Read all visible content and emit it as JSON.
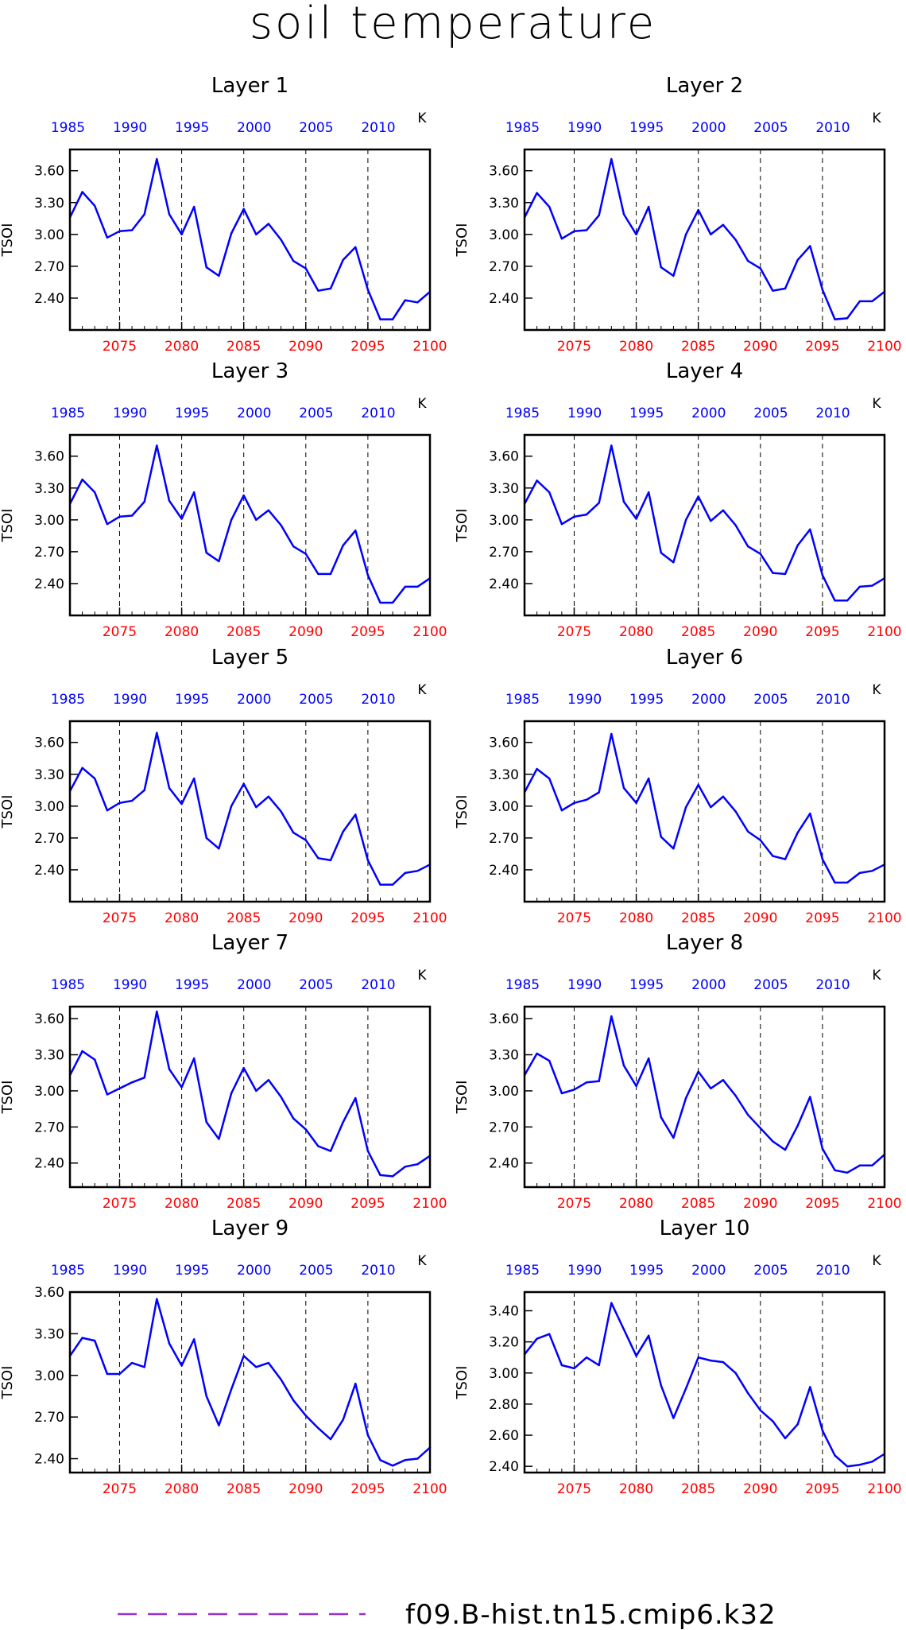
{
  "figure_title": "soil temperature",
  "legend": {
    "label": "f09.B-hist.tn15.cmip6.k32",
    "color": "#9932CC"
  },
  "colors": {
    "line": "#0000FF",
    "bottom_ticks": "#FF0000",
    "top_ticks": "#0000FF",
    "frame": "#000000"
  },
  "chart_data": [
    {
      "type": "line",
      "title": "Layer 1",
      "ylabel": "TSOI",
      "unit": "K",
      "x": [
        2071,
        2072,
        2073,
        2074,
        2075,
        2076,
        2077,
        2078,
        2079,
        2080,
        2081,
        2082,
        2083,
        2084,
        2085,
        2086,
        2087,
        2088,
        2089,
        2090,
        2091,
        2092,
        2093,
        2094,
        2095,
        2096,
        2097,
        2098,
        2099,
        2100
      ],
      "values": [
        3.16,
        3.4,
        3.27,
        2.97,
        3.03,
        3.04,
        3.19,
        3.71,
        3.19,
        3.0,
        3.26,
        2.69,
        2.61,
        3.01,
        3.24,
        3.0,
        3.1,
        2.95,
        2.75,
        2.68,
        2.47,
        2.49,
        2.76,
        2.88,
        2.48,
        2.2,
        2.2,
        2.38,
        2.36,
        2.46
      ],
      "xlim": [
        2071,
        2100
      ],
      "ylim": [
        2.1,
        3.8
      ],
      "yticks": [
        2.4,
        2.7,
        3.0,
        3.3,
        3.6
      ],
      "ytick_labels": [
        "2.40",
        "2.70",
        "3.00",
        "3.30",
        "3.60"
      ],
      "xticks_bottom": [
        2075,
        2080,
        2085,
        2090,
        2095,
        2100
      ],
      "xticks_top": [
        1985,
        1990,
        1995,
        2000,
        2005,
        2010
      ],
      "grid_x": [
        2075,
        2080,
        2085,
        2090,
        2095
      ]
    },
    {
      "type": "line",
      "title": "Layer 2",
      "ylabel": "TSOI",
      "unit": "K",
      "x": [
        2071,
        2072,
        2073,
        2074,
        2075,
        2076,
        2077,
        2078,
        2079,
        2080,
        2081,
        2082,
        2083,
        2084,
        2085,
        2086,
        2087,
        2088,
        2089,
        2090,
        2091,
        2092,
        2093,
        2094,
        2095,
        2096,
        2097,
        2098,
        2099,
        2100
      ],
      "values": [
        3.16,
        3.39,
        3.26,
        2.96,
        3.03,
        3.04,
        3.18,
        3.71,
        3.19,
        3.0,
        3.26,
        2.69,
        2.61,
        3.0,
        3.23,
        3.0,
        3.09,
        2.95,
        2.75,
        2.68,
        2.47,
        2.49,
        2.76,
        2.89,
        2.48,
        2.2,
        2.21,
        2.37,
        2.37,
        2.46
      ],
      "xlim": [
        2071,
        2100
      ],
      "ylim": [
        2.1,
        3.8
      ],
      "yticks": [
        2.4,
        2.7,
        3.0,
        3.3,
        3.6
      ],
      "ytick_labels": [
        "2.40",
        "2.70",
        "3.00",
        "3.30",
        "3.60"
      ],
      "xticks_bottom": [
        2075,
        2080,
        2085,
        2090,
        2095,
        2100
      ],
      "xticks_top": [
        1985,
        1990,
        1995,
        2000,
        2005,
        2010
      ],
      "grid_x": [
        2075,
        2080,
        2085,
        2090,
        2095
      ]
    },
    {
      "type": "line",
      "title": "Layer 3",
      "ylabel": "TSOI",
      "unit": "K",
      "x": [
        2071,
        2072,
        2073,
        2074,
        2075,
        2076,
        2077,
        2078,
        2079,
        2080,
        2081,
        2082,
        2083,
        2084,
        2085,
        2086,
        2087,
        2088,
        2089,
        2090,
        2091,
        2092,
        2093,
        2094,
        2095,
        2096,
        2097,
        2098,
        2099,
        2100
      ],
      "values": [
        3.15,
        3.38,
        3.26,
        2.96,
        3.03,
        3.04,
        3.17,
        3.7,
        3.18,
        3.01,
        3.26,
        2.69,
        2.61,
        3.0,
        3.23,
        3.0,
        3.09,
        2.95,
        2.75,
        2.68,
        2.49,
        2.49,
        2.76,
        2.9,
        2.48,
        2.22,
        2.22,
        2.37,
        2.37,
        2.45
      ],
      "xlim": [
        2071,
        2100
      ],
      "ylim": [
        2.1,
        3.8
      ],
      "yticks": [
        2.4,
        2.7,
        3.0,
        3.3,
        3.6
      ],
      "ytick_labels": [
        "2.40",
        "2.70",
        "3.00",
        "3.30",
        "3.60"
      ],
      "xticks_bottom": [
        2075,
        2080,
        2085,
        2090,
        2095,
        2100
      ],
      "xticks_top": [
        1985,
        1990,
        1995,
        2000,
        2005,
        2010
      ],
      "grid_x": [
        2075,
        2080,
        2085,
        2090,
        2095
      ]
    },
    {
      "type": "line",
      "title": "Layer 4",
      "ylabel": "TSOI",
      "unit": "K",
      "x": [
        2071,
        2072,
        2073,
        2074,
        2075,
        2076,
        2077,
        2078,
        2079,
        2080,
        2081,
        2082,
        2083,
        2084,
        2085,
        2086,
        2087,
        2088,
        2089,
        2090,
        2091,
        2092,
        2093,
        2094,
        2095,
        2096,
        2097,
        2098,
        2099,
        2100
      ],
      "values": [
        3.15,
        3.37,
        3.26,
        2.96,
        3.03,
        3.05,
        3.16,
        3.7,
        3.17,
        3.01,
        3.26,
        2.69,
        2.6,
        3.0,
        3.22,
        2.99,
        3.09,
        2.95,
        2.75,
        2.68,
        2.5,
        2.49,
        2.76,
        2.91,
        2.48,
        2.24,
        2.24,
        2.37,
        2.38,
        2.45
      ],
      "xlim": [
        2071,
        2100
      ],
      "ylim": [
        2.1,
        3.8
      ],
      "yticks": [
        2.4,
        2.7,
        3.0,
        3.3,
        3.6
      ],
      "ytick_labels": [
        "2.40",
        "2.70",
        "3.00",
        "3.30",
        "3.60"
      ],
      "xticks_bottom": [
        2075,
        2080,
        2085,
        2090,
        2095,
        2100
      ],
      "xticks_top": [
        1985,
        1990,
        1995,
        2000,
        2005,
        2010
      ],
      "grid_x": [
        2075,
        2080,
        2085,
        2090,
        2095
      ]
    },
    {
      "type": "line",
      "title": "Layer 5",
      "ylabel": "TSOI",
      "unit": "K",
      "x": [
        2071,
        2072,
        2073,
        2074,
        2075,
        2076,
        2077,
        2078,
        2079,
        2080,
        2081,
        2082,
        2083,
        2084,
        2085,
        2086,
        2087,
        2088,
        2089,
        2090,
        2091,
        2092,
        2093,
        2094,
        2095,
        2096,
        2097,
        2098,
        2099,
        2100
      ],
      "values": [
        3.14,
        3.36,
        3.26,
        2.96,
        3.03,
        3.05,
        3.15,
        3.69,
        3.17,
        3.02,
        3.26,
        2.7,
        2.6,
        3.0,
        3.21,
        2.99,
        3.09,
        2.95,
        2.75,
        2.68,
        2.51,
        2.49,
        2.76,
        2.92,
        2.49,
        2.26,
        2.26,
        2.37,
        2.39,
        2.45
      ],
      "xlim": [
        2071,
        2100
      ],
      "ylim": [
        2.1,
        3.8
      ],
      "yticks": [
        2.4,
        2.7,
        3.0,
        3.3,
        3.6
      ],
      "ytick_labels": [
        "2.40",
        "2.70",
        "3.00",
        "3.30",
        "3.60"
      ],
      "xticks_bottom": [
        2075,
        2080,
        2085,
        2090,
        2095,
        2100
      ],
      "xticks_top": [
        1985,
        1990,
        1995,
        2000,
        2005,
        2010
      ],
      "grid_x": [
        2075,
        2080,
        2085,
        2090,
        2095
      ]
    },
    {
      "type": "line",
      "title": "Layer 6",
      "ylabel": "TSOI",
      "unit": "K",
      "x": [
        2071,
        2072,
        2073,
        2074,
        2075,
        2076,
        2077,
        2078,
        2079,
        2080,
        2081,
        2082,
        2083,
        2084,
        2085,
        2086,
        2087,
        2088,
        2089,
        2090,
        2091,
        2092,
        2093,
        2094,
        2095,
        2096,
        2097,
        2098,
        2099,
        2100
      ],
      "values": [
        3.13,
        3.35,
        3.26,
        2.96,
        3.03,
        3.06,
        3.13,
        3.68,
        3.17,
        3.03,
        3.26,
        2.71,
        2.6,
        2.99,
        3.2,
        2.99,
        3.09,
        2.95,
        2.76,
        2.68,
        2.53,
        2.5,
        2.75,
        2.93,
        2.5,
        2.28,
        2.28,
        2.37,
        2.39,
        2.45
      ],
      "xlim": [
        2071,
        2100
      ],
      "ylim": [
        2.1,
        3.8
      ],
      "yticks": [
        2.4,
        2.7,
        3.0,
        3.3,
        3.6
      ],
      "ytick_labels": [
        "2.40",
        "2.70",
        "3.00",
        "3.30",
        "3.60"
      ],
      "xticks_bottom": [
        2075,
        2080,
        2085,
        2090,
        2095,
        2100
      ],
      "xticks_top": [
        1985,
        1990,
        1995,
        2000,
        2005,
        2010
      ],
      "grid_x": [
        2075,
        2080,
        2085,
        2090,
        2095
      ]
    },
    {
      "type": "line",
      "title": "Layer 7",
      "ylabel": "TSOI",
      "unit": "K",
      "x": [
        2071,
        2072,
        2073,
        2074,
        2075,
        2076,
        2077,
        2078,
        2079,
        2080,
        2081,
        2082,
        2083,
        2084,
        2085,
        2086,
        2087,
        2088,
        2089,
        2090,
        2091,
        2092,
        2093,
        2094,
        2095,
        2096,
        2097,
        2098,
        2099,
        2100
      ],
      "values": [
        3.13,
        3.33,
        3.26,
        2.97,
        3.02,
        3.07,
        3.11,
        3.66,
        3.18,
        3.03,
        3.27,
        2.74,
        2.6,
        2.98,
        3.19,
        3.0,
        3.09,
        2.95,
        2.77,
        2.68,
        2.54,
        2.5,
        2.74,
        2.94,
        2.5,
        2.3,
        2.29,
        2.37,
        2.39,
        2.46
      ],
      "xlim": [
        2071,
        2100
      ],
      "ylim": [
        2.2,
        3.7
      ],
      "yticks": [
        2.4,
        2.7,
        3.0,
        3.3,
        3.6
      ],
      "ytick_labels": [
        "2.40",
        "2.70",
        "3.00",
        "3.30",
        "3.60"
      ],
      "xticks_bottom": [
        2075,
        2080,
        2085,
        2090,
        2095,
        2100
      ],
      "xticks_top": [
        1985,
        1990,
        1995,
        2000,
        2005,
        2010
      ],
      "grid_x": [
        2075,
        2080,
        2085,
        2090,
        2095
      ]
    },
    {
      "type": "line",
      "title": "Layer 8",
      "ylabel": "TSOI",
      "unit": "K",
      "x": [
        2071,
        2072,
        2073,
        2074,
        2075,
        2076,
        2077,
        2078,
        2079,
        2080,
        2081,
        2082,
        2083,
        2084,
        2085,
        2086,
        2087,
        2088,
        2089,
        2090,
        2091,
        2092,
        2093,
        2094,
        2095,
        2096,
        2097,
        2098,
        2099,
        2100
      ],
      "values": [
        3.13,
        3.31,
        3.25,
        2.98,
        3.01,
        3.07,
        3.08,
        3.62,
        3.21,
        3.04,
        3.27,
        2.78,
        2.61,
        2.94,
        3.16,
        3.02,
        3.09,
        2.96,
        2.8,
        2.69,
        2.58,
        2.51,
        2.71,
        2.95,
        2.52,
        2.34,
        2.32,
        2.38,
        2.38,
        2.47
      ],
      "xlim": [
        2071,
        2100
      ],
      "ylim": [
        2.2,
        3.7
      ],
      "yticks": [
        2.4,
        2.7,
        3.0,
        3.3,
        3.6
      ],
      "ytick_labels": [
        "2.40",
        "2.70",
        "3.00",
        "3.30",
        "3.60"
      ],
      "xticks_bottom": [
        2075,
        2080,
        2085,
        2090,
        2095,
        2100
      ],
      "xticks_top": [
        1985,
        1990,
        1995,
        2000,
        2005,
        2010
      ],
      "grid_x": [
        2075,
        2080,
        2085,
        2090,
        2095
      ]
    },
    {
      "type": "line",
      "title": "Layer 9",
      "ylabel": "TSOI",
      "unit": "K",
      "x": [
        2071,
        2072,
        2073,
        2074,
        2075,
        2076,
        2077,
        2078,
        2079,
        2080,
        2081,
        2082,
        2083,
        2084,
        2085,
        2086,
        2087,
        2088,
        2089,
        2090,
        2091,
        2092,
        2093,
        2094,
        2095,
        2096,
        2097,
        2098,
        2099,
        2100
      ],
      "values": [
        3.14,
        3.27,
        3.25,
        3.01,
        3.01,
        3.09,
        3.06,
        3.55,
        3.23,
        3.07,
        3.26,
        2.85,
        2.64,
        2.9,
        3.14,
        3.06,
        3.09,
        2.97,
        2.82,
        2.71,
        2.62,
        2.54,
        2.68,
        2.94,
        2.57,
        2.39,
        2.35,
        2.39,
        2.4,
        2.48
      ],
      "xlim": [
        2071,
        2100
      ],
      "ylim": [
        2.3,
        3.6
      ],
      "yticks": [
        2.4,
        2.7,
        3.0,
        3.3,
        3.6
      ],
      "ytick_labels": [
        "2.40",
        "2.70",
        "3.00",
        "3.30",
        "3.60"
      ],
      "xticks_bottom": [
        2075,
        2080,
        2085,
        2090,
        2095,
        2100
      ],
      "xticks_top": [
        1985,
        1990,
        1995,
        2000,
        2005,
        2010
      ],
      "grid_x": [
        2075,
        2080,
        2085,
        2090,
        2095
      ]
    },
    {
      "type": "line",
      "title": "Layer 10",
      "ylabel": "TSOI",
      "unit": "K",
      "x": [
        2071,
        2072,
        2073,
        2074,
        2075,
        2076,
        2077,
        2078,
        2079,
        2080,
        2081,
        2082,
        2083,
        2084,
        2085,
        2086,
        2087,
        2088,
        2089,
        2090,
        2091,
        2092,
        2093,
        2094,
        2095,
        2096,
        2097,
        2098,
        2099,
        2100
      ],
      "values": [
        3.12,
        3.22,
        3.25,
        3.05,
        3.03,
        3.1,
        3.05,
        3.45,
        3.28,
        3.11,
        3.24,
        2.92,
        2.71,
        2.9,
        3.1,
        3.08,
        3.07,
        3.0,
        2.87,
        2.76,
        2.69,
        2.58,
        2.67,
        2.91,
        2.63,
        2.47,
        2.4,
        2.41,
        2.43,
        2.48
      ],
      "xlim": [
        2071,
        2100
      ],
      "ylim": [
        2.36,
        3.52
      ],
      "yticks": [
        2.4,
        2.6,
        2.8,
        3.0,
        3.2,
        3.4
      ],
      "ytick_labels": [
        "2.40",
        "2.60",
        "2.80",
        "3.00",
        "3.20",
        "3.40"
      ],
      "xticks_bottom": [
        2075,
        2080,
        2085,
        2090,
        2095,
        2100
      ],
      "xticks_top": [
        1985,
        1990,
        1995,
        2000,
        2005,
        2010
      ],
      "grid_x": [
        2075,
        2080,
        2085,
        2090,
        2095
      ]
    }
  ]
}
